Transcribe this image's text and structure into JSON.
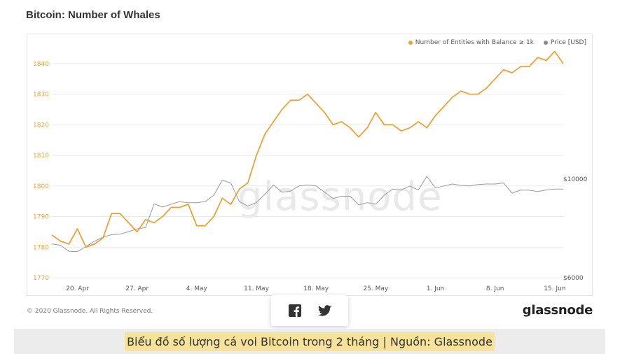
{
  "page": {
    "title": "Bitcoin: Number of Whales",
    "copyright": "© 2020 Glassnode. All Rights Reserved.",
    "brand": "glassnode",
    "watermark": "glassnode",
    "caption": "Biểu đồ số lượng cá voi Bitcoin trong 2 tháng | Nguồn: Glassnode"
  },
  "share": {
    "facebook_icon": "facebook-icon",
    "twitter_icon": "twitter-icon"
  },
  "colors": {
    "entities": "#e8a33d",
    "price": "#9a9a9a",
    "grid": "#ececec",
    "axis_text": "#e8a33d",
    "right_text": "#555555"
  },
  "chart_data": {
    "type": "line",
    "legend_position": "top-right",
    "grid": true,
    "x_ticks": [
      "20. Apr",
      "27. Apr",
      "4. May",
      "11. May",
      "18. May",
      "25. May",
      "1. Jun",
      "8. Jun",
      "15. Jun"
    ],
    "y_left": {
      "ticks": [
        1770,
        1780,
        1790,
        1800,
        1810,
        1820,
        1830,
        1840
      ],
      "range": [
        1770,
        1845
      ]
    },
    "y_right": {
      "ticks": [
        "$6000",
        "$10000"
      ],
      "range": [
        6000,
        10000
      ],
      "log": true
    },
    "series": [
      {
        "name": "Number of Entities with Balance ≥ 1k",
        "axis": "left",
        "values": [
          1784,
          1782,
          1781,
          1786,
          1780,
          1781,
          1783,
          1791,
          1791,
          1788,
          1785,
          1789,
          1788,
          1790,
          1793,
          1793,
          1794,
          1787,
          1787,
          1790,
          1796,
          1794,
          1799,
          1801,
          1810,
          1817,
          1821,
          1825,
          1828,
          1828,
          1830,
          1827,
          1824,
          1820,
          1821,
          1819,
          1816,
          1819,
          1824,
          1820,
          1820,
          1818,
          1819,
          1821,
          1819,
          1823,
          1826,
          1829,
          1831,
          1830,
          1830,
          1832,
          1835,
          1838,
          1837,
          1839,
          1839,
          1842,
          1841,
          1844,
          1840
        ]
      },
      {
        "name": "Price [USD]",
        "axis": "right",
        "values": [
          7150,
          7100,
          6880,
          6870,
          7050,
          7250,
          7400,
          7500,
          7520,
          7620,
          7730,
          7780,
          8800,
          8650,
          8780,
          8900,
          8850,
          8850,
          8900,
          9200,
          9950,
          9800,
          8900,
          8700,
          8850,
          9250,
          9700,
          9350,
          9400,
          9650,
          9700,
          9650,
          9350,
          9050,
          9150,
          9150,
          8750,
          8850,
          8780,
          9200,
          9500,
          9450,
          9650,
          9450,
          10150,
          9550,
          9650,
          9750,
          9680,
          9650,
          9720,
          9750,
          9750,
          9800,
          9300,
          9450,
          9440,
          9380,
          9450,
          9500,
          9500
        ]
      }
    ]
  }
}
